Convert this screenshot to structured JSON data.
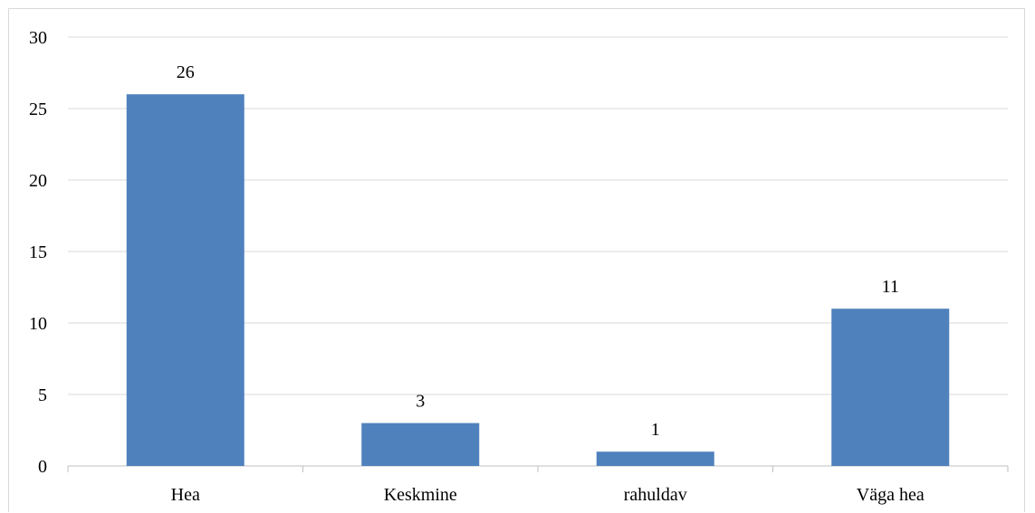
{
  "chart_data": {
    "type": "bar",
    "categories": [
      "Hea",
      "Keskmine",
      "rahuldav",
      "Väga hea"
    ],
    "values": [
      26,
      3,
      1,
      11
    ],
    "data_labels": [
      "26",
      "3",
      "1",
      "11"
    ],
    "title": "",
    "xlabel": "",
    "ylabel": "",
    "ylim": [
      0,
      30
    ],
    "yticks": [
      0,
      5,
      10,
      15,
      20,
      25,
      30
    ],
    "ytick_labels": [
      "0",
      "5",
      "10",
      "15",
      "20",
      "25",
      "30"
    ],
    "grid": true,
    "legend": "none",
    "bar_color": "#4f81bd",
    "grid_color": "#d9d9d9"
  }
}
